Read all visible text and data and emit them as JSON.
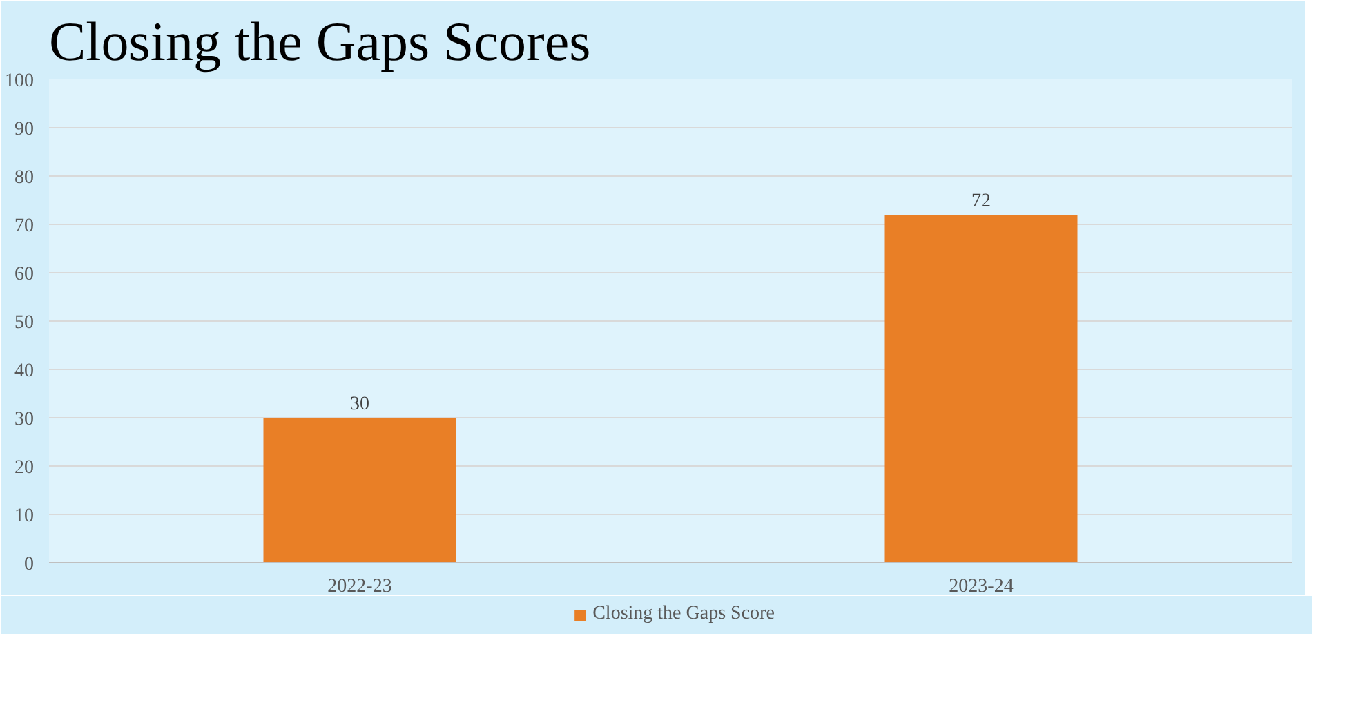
{
  "chart_data": {
    "type": "bar",
    "title": "Closing the Gaps Scores",
    "categories": [
      "2022-23",
      "2023-24"
    ],
    "series": [
      {
        "name": "Closing the Gaps Score",
        "color": "#e97f26",
        "values": [
          30,
          72
        ]
      }
    ],
    "ylim": [
      0,
      100
    ],
    "yticks": [
      0,
      10,
      20,
      30,
      40,
      50,
      60,
      70,
      80,
      90,
      100
    ],
    "grid": "y",
    "legend": "bottom",
    "data_labels": true
  }
}
